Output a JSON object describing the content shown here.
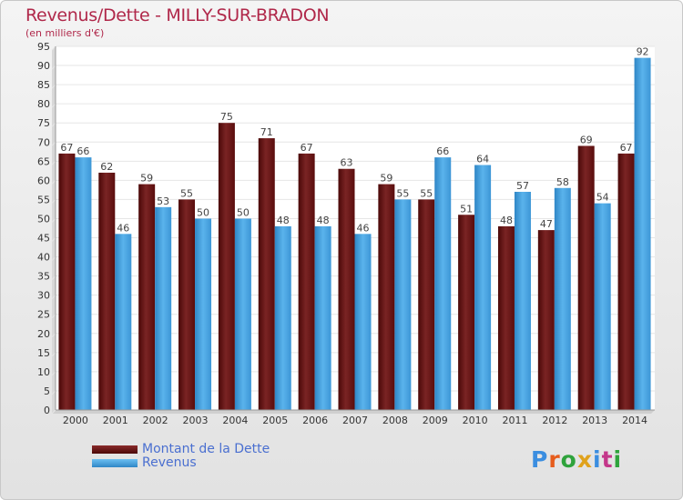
{
  "title": "Revenus/Dette - MILLY-SUR-BRADON",
  "subtitle": "(en milliers d'€)",
  "colors": {
    "dette": "#6e1818",
    "revenus": "#4aa3e0",
    "title": "#b0284a",
    "legend_text": "#4a6fd0"
  },
  "legend": [
    {
      "label": "Montant de la Dette",
      "color": "#6e1818"
    },
    {
      "label": "Revenus",
      "color": "#4aa3e0"
    }
  ],
  "logo": {
    "text": "Proxiti"
  },
  "chart_data": {
    "type": "bar",
    "categories": [
      "2000",
      "2001",
      "2002",
      "2003",
      "2004",
      "2005",
      "2006",
      "2007",
      "2008",
      "2009",
      "2010",
      "2011",
      "2012",
      "2013",
      "2014"
    ],
    "series": [
      {
        "name": "Montant de la Dette",
        "values": [
          67,
          62,
          59,
          55,
          75,
          71,
          67,
          63,
          59,
          55,
          51,
          48,
          47,
          69,
          67
        ]
      },
      {
        "name": "Revenus",
        "values": [
          66,
          46,
          53,
          50,
          50,
          48,
          48,
          46,
          55,
          66,
          64,
          57,
          58,
          54,
          92
        ]
      }
    ],
    "title": "Revenus/Dette - MILLY-SUR-BRADON",
    "subtitle": "(en milliers d'€)",
    "xlabel": "",
    "ylabel": "",
    "ylim": [
      0,
      95
    ],
    "yticks": [
      0,
      5,
      10,
      15,
      20,
      25,
      30,
      35,
      40,
      45,
      50,
      55,
      60,
      65,
      70,
      75,
      80,
      85,
      90,
      95
    ],
    "grid": true,
    "legend_position": "bottom-left",
    "data_labels": true
  }
}
